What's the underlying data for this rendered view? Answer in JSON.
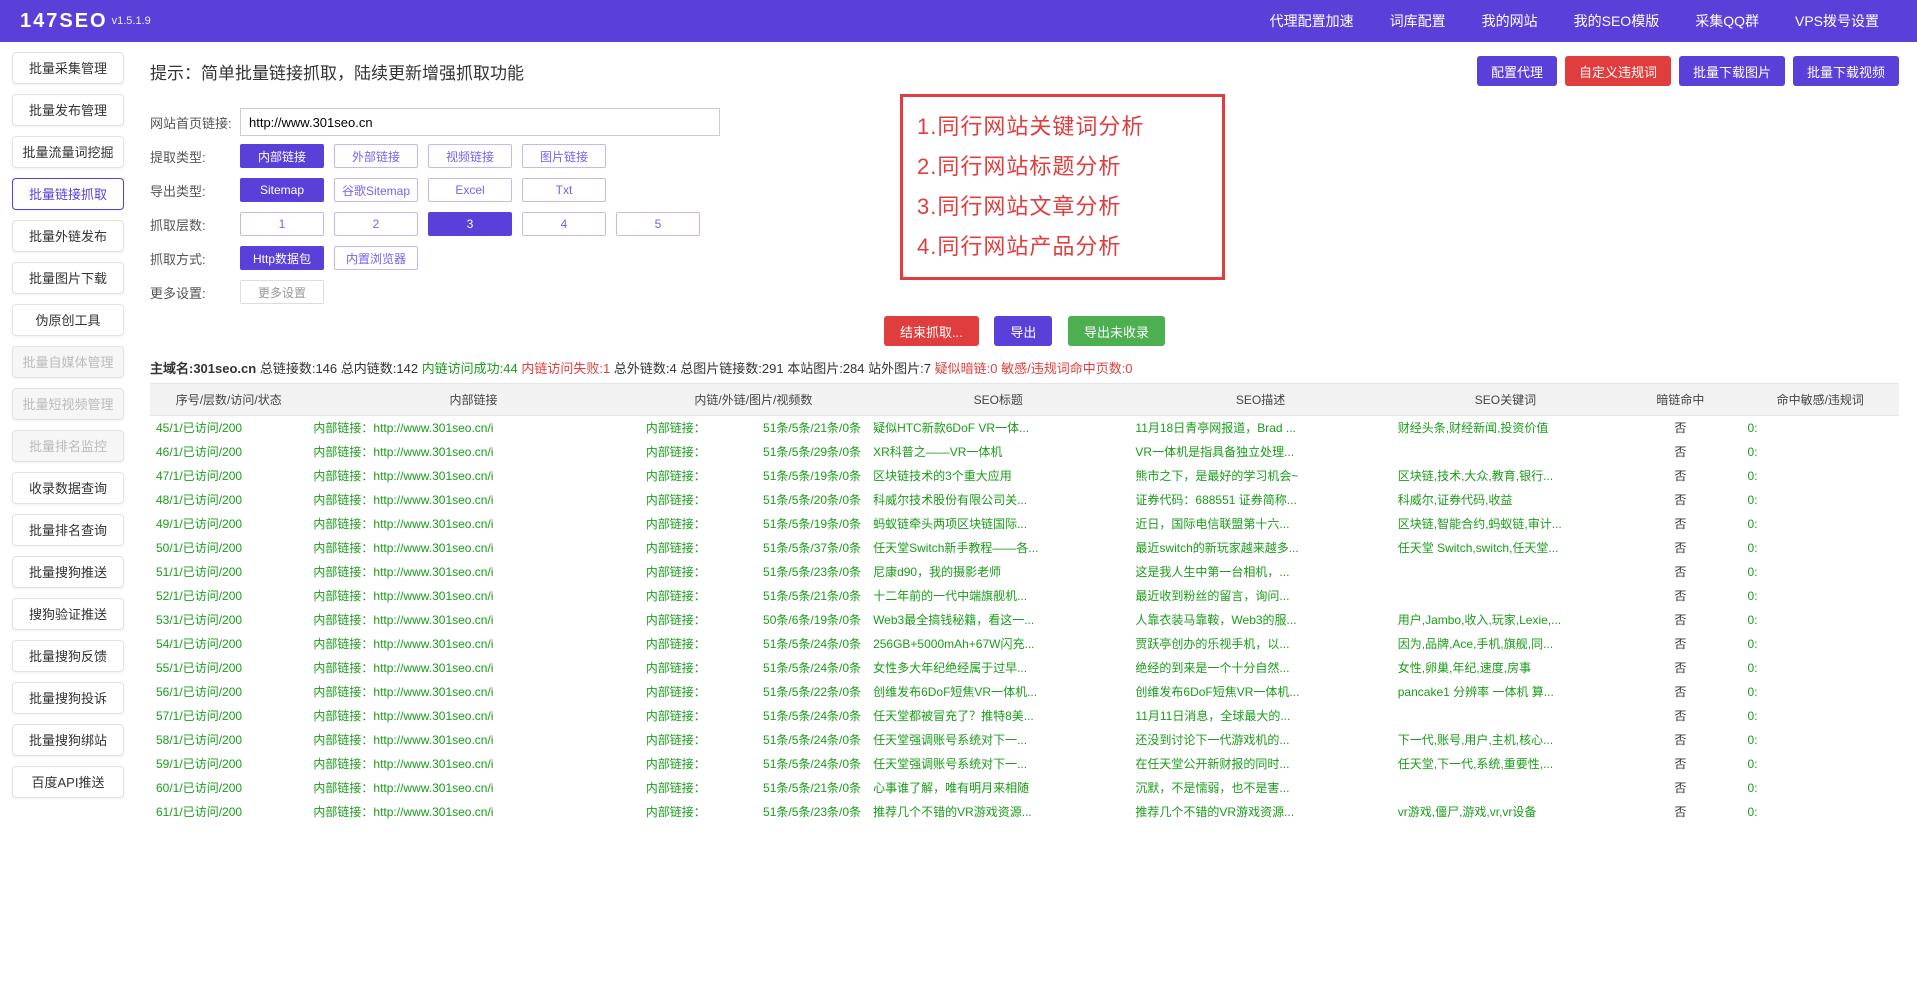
{
  "navbar": {
    "logo": "147SEO",
    "version": "v1.5.1.9",
    "links": [
      "代理配置加速",
      "词库配置",
      "我的网站",
      "我的SEO模版",
      "采集QQ群",
      "VPS拨号设置"
    ]
  },
  "sidebar": [
    {
      "label": "批量采集管理",
      "state": ""
    },
    {
      "label": "批量发布管理",
      "state": ""
    },
    {
      "label": "批量流量词挖掘",
      "state": ""
    },
    {
      "label": "批量链接抓取",
      "state": "active"
    },
    {
      "label": "批量外链发布",
      "state": ""
    },
    {
      "label": "批量图片下载",
      "state": ""
    },
    {
      "label": "伪原创工具",
      "state": ""
    },
    {
      "label": "批量自媒体管理",
      "state": "disabled"
    },
    {
      "label": "批量短视频管理",
      "state": "disabled"
    },
    {
      "label": "批量排名监控",
      "state": "disabled"
    },
    {
      "label": "收录数据查询",
      "state": ""
    },
    {
      "label": "批量排名查询",
      "state": ""
    },
    {
      "label": "批量搜狗推送",
      "state": ""
    },
    {
      "label": "搜狗验证推送",
      "state": ""
    },
    {
      "label": "批量搜狗反馈",
      "state": ""
    },
    {
      "label": "批量搜狗投诉",
      "state": ""
    },
    {
      "label": "批量搜狗绑站",
      "state": ""
    },
    {
      "label": "百度API推送",
      "state": ""
    }
  ],
  "hint": "提示：简单批量链接抓取，陆续更新增强抓取功能",
  "actions": {
    "proxy": "配置代理",
    "violation": "自定义违规词",
    "dlimg": "批量下载图片",
    "dlvid": "批量下载视频"
  },
  "form": {
    "url_label": "网站首页链接:",
    "url_value": "http://www.301seo.cn",
    "rows": [
      {
        "label": "提取类型:",
        "opts": [
          "内部链接",
          "外部链接",
          "视频链接",
          "图片链接"
        ],
        "sel": 0
      },
      {
        "label": "导出类型:",
        "opts": [
          "Sitemap",
          "谷歌Sitemap",
          "Excel",
          "Txt"
        ],
        "sel": 0
      },
      {
        "label": "抓取层数:",
        "opts": [
          "1",
          "2",
          "3",
          "4",
          "5"
        ],
        "sel": 2
      },
      {
        "label": "抓取方式:",
        "opts": [
          "Http数据包",
          "内置浏览器"
        ],
        "sel": 0
      },
      {
        "label": "更多设置:",
        "opts": [
          "更多设置"
        ],
        "sel": -1,
        "plain": true
      }
    ]
  },
  "callout": [
    "1.同行网站关键词分析",
    "2.同行网站标题分析",
    "3.同行网站文章分析",
    "4.同行网站产品分析"
  ],
  "midbtns": {
    "stop": "结束抓取...",
    "export": "导出",
    "export_un": "导出未收录"
  },
  "stats": {
    "domain_label": "主域名:",
    "domain": "301seo.cn",
    "parts": [
      {
        "t": "总链接数:146",
        "c": ""
      },
      {
        "t": "总内链数:142",
        "c": ""
      },
      {
        "t": "内链访问成功:44",
        "c": "grn"
      },
      {
        "t": "内链访问失败:1",
        "c": "rd"
      },
      {
        "t": "总外链数:4",
        "c": ""
      },
      {
        "t": "总图片链接数:291",
        "c": ""
      },
      {
        "t": "本站图片:284",
        "c": ""
      },
      {
        "t": "站外图片:7",
        "c": ""
      },
      {
        "t": "疑似暗链:0",
        "c": "rd"
      },
      {
        "t": "敏感/违规词命中页数:0",
        "c": "rd"
      }
    ]
  },
  "table": {
    "headers": [
      "序号/层数/访问/状态",
      "内部链接",
      "内链/外链/图片/视频数",
      "SEO标题",
      "SEO描述",
      "SEO关键词",
      "暗链命中",
      "命中敏感/违规词"
    ],
    "rows": [
      {
        "idx": "45/1/已访问/200",
        "link": "内部链接：http://www.301seo.cn/i",
        "cnt": "51条/5条/21条/0条",
        "tit": "疑似HTC新款6DoF VR一体...",
        "desc": "11月18日青亭网报道，Brad ...",
        "kw": "财经头条,财经新闻,投资价值",
        "dark": "否",
        "sens": "0:"
      },
      {
        "idx": "46/1/已访问/200",
        "link": "内部链接：http://www.301seo.cn/i",
        "cnt": "51条/5条/29条/0条",
        "tit": "XR科普之——VR一体机",
        "desc": "VR一体机是指具备独立处理...",
        "kw": "",
        "dark": "否",
        "sens": "0:"
      },
      {
        "idx": "47/1/已访问/200",
        "link": "内部链接：http://www.301seo.cn/i",
        "cnt": "51条/5条/19条/0条",
        "tit": "区块链技术的3个重大应用",
        "desc": "熊市之下，是最好的学习机会~",
        "kw": "区块链,技术,大众,教育,银行...",
        "dark": "否",
        "sens": "0:"
      },
      {
        "idx": "48/1/已访问/200",
        "link": "内部链接：http://www.301seo.cn/i",
        "cnt": "51条/5条/20条/0条",
        "tit": "科威尔技术股份有限公司关...",
        "desc": "证券代码：688551 证券简称...",
        "kw": "科威尔,证券代码,收益",
        "dark": "否",
        "sens": "0:"
      },
      {
        "idx": "49/1/已访问/200",
        "link": "内部链接：http://www.301seo.cn/i",
        "cnt": "51条/5条/19条/0条",
        "tit": "蚂蚁链牵头两项区块链国际...",
        "desc": "近日，国际电信联盟第十六...",
        "kw": "区块链,智能合约,蚂蚁链,审计...",
        "dark": "否",
        "sens": "0:"
      },
      {
        "idx": "50/1/已访问/200",
        "link": "内部链接：http://www.301seo.cn/i",
        "cnt": "51条/5条/37条/0条",
        "tit": "任天堂Switch新手教程——各...",
        "desc": "最近switch的新玩家越来越多...",
        "kw": "任天堂 Switch,switch,任天堂...",
        "dark": "否",
        "sens": "0:"
      },
      {
        "idx": "51/1/已访问/200",
        "link": "内部链接：http://www.301seo.cn/i",
        "cnt": "51条/5条/23条/0条",
        "tit": "尼康d90，我的摄影老师",
        "desc": "这是我人生中第一台相机，...",
        "kw": "",
        "dark": "否",
        "sens": "0:"
      },
      {
        "idx": "52/1/已访问/200",
        "link": "内部链接：http://www.301seo.cn/i",
        "cnt": "51条/5条/21条/0条",
        "tit": "十二年前的一代中端旗舰机...",
        "desc": "最近收到粉丝的留言，询问...",
        "kw": "",
        "dark": "否",
        "sens": "0:"
      },
      {
        "idx": "53/1/已访问/200",
        "link": "内部链接：http://www.301seo.cn/i",
        "cnt": "50条/6条/19条/0条",
        "tit": "Web3最全搞钱秘籍，看这一...",
        "desc": "人靠衣装马靠鞍，Web3的服...",
        "kw": "用户,Jambo,收入,玩家,Lexie,...",
        "dark": "否",
        "sens": "0:"
      },
      {
        "idx": "54/1/已访问/200",
        "link": "内部链接：http://www.301seo.cn/i",
        "cnt": "51条/5条/24条/0条",
        "tit": "256GB+5000mAh+67W闪充...",
        "desc": "贾跃亭创办的乐视手机，以...",
        "kw": "因为,品牌,Ace,手机,旗舰,同...",
        "dark": "否",
        "sens": "0:"
      },
      {
        "idx": "55/1/已访问/200",
        "link": "内部链接：http://www.301seo.cn/i",
        "cnt": "51条/5条/24条/0条",
        "tit": "女性多大年纪绝经属于过早...",
        "desc": "绝经的到来是一个十分自然...",
        "kw": "女性,卵巢,年纪,速度,房事",
        "dark": "否",
        "sens": "0:"
      },
      {
        "idx": "56/1/已访问/200",
        "link": "内部链接：http://www.301seo.cn/i",
        "cnt": "51条/5条/22条/0条",
        "tit": "创维发布6DoF短焦VR一体机...",
        "desc": "创维发布6DoF短焦VR一体机...",
        "kw": "pancake1 分辨率 一体机 算...",
        "dark": "否",
        "sens": "0:"
      },
      {
        "idx": "57/1/已访问/200",
        "link": "内部链接：http://www.301seo.cn/i",
        "cnt": "51条/5条/24条/0条",
        "tit": "任天堂都被冒充了？推特8美...",
        "desc": "11月11日消息，全球最大的...",
        "kw": "",
        "dark": "否",
        "sens": "0:"
      },
      {
        "idx": "58/1/已访问/200",
        "link": "内部链接：http://www.301seo.cn/i",
        "cnt": "51条/5条/24条/0条",
        "tit": "任天堂强调账号系统对下一...",
        "desc": "还没到讨论下一代游戏机的...",
        "kw": "下一代,账号,用户,主机,核心...",
        "dark": "否",
        "sens": "0:"
      },
      {
        "idx": "59/1/已访问/200",
        "link": "内部链接：http://www.301seo.cn/i",
        "cnt": "51条/5条/24条/0条",
        "tit": "任天堂强调账号系统对下一...",
        "desc": "在任天堂公开新财报的同时...",
        "kw": "任天堂,下一代,系统,重要性,...",
        "dark": "否",
        "sens": "0:"
      },
      {
        "idx": "60/1/已访问/200",
        "link": "内部链接：http://www.301seo.cn/i",
        "cnt": "51条/5条/21条/0条",
        "tit": "心事谁了解，唯有明月来相随",
        "desc": "沉默，不是懦弱，也不是害...",
        "kw": "",
        "dark": "否",
        "sens": "0:"
      },
      {
        "idx": "61/1/已访问/200",
        "link": "内部链接：http://www.301seo.cn/i",
        "cnt": "51条/5条/23条/0条",
        "tit": "推荐几个不错的VR游戏资源...",
        "desc": "推荐几个不错的VR游戏资源...",
        "kw": "vr游戏,僵尸,游戏,vr,vr设备",
        "dark": "否",
        "sens": "0:"
      }
    ]
  },
  "internal_link_label": "内部链接："
}
